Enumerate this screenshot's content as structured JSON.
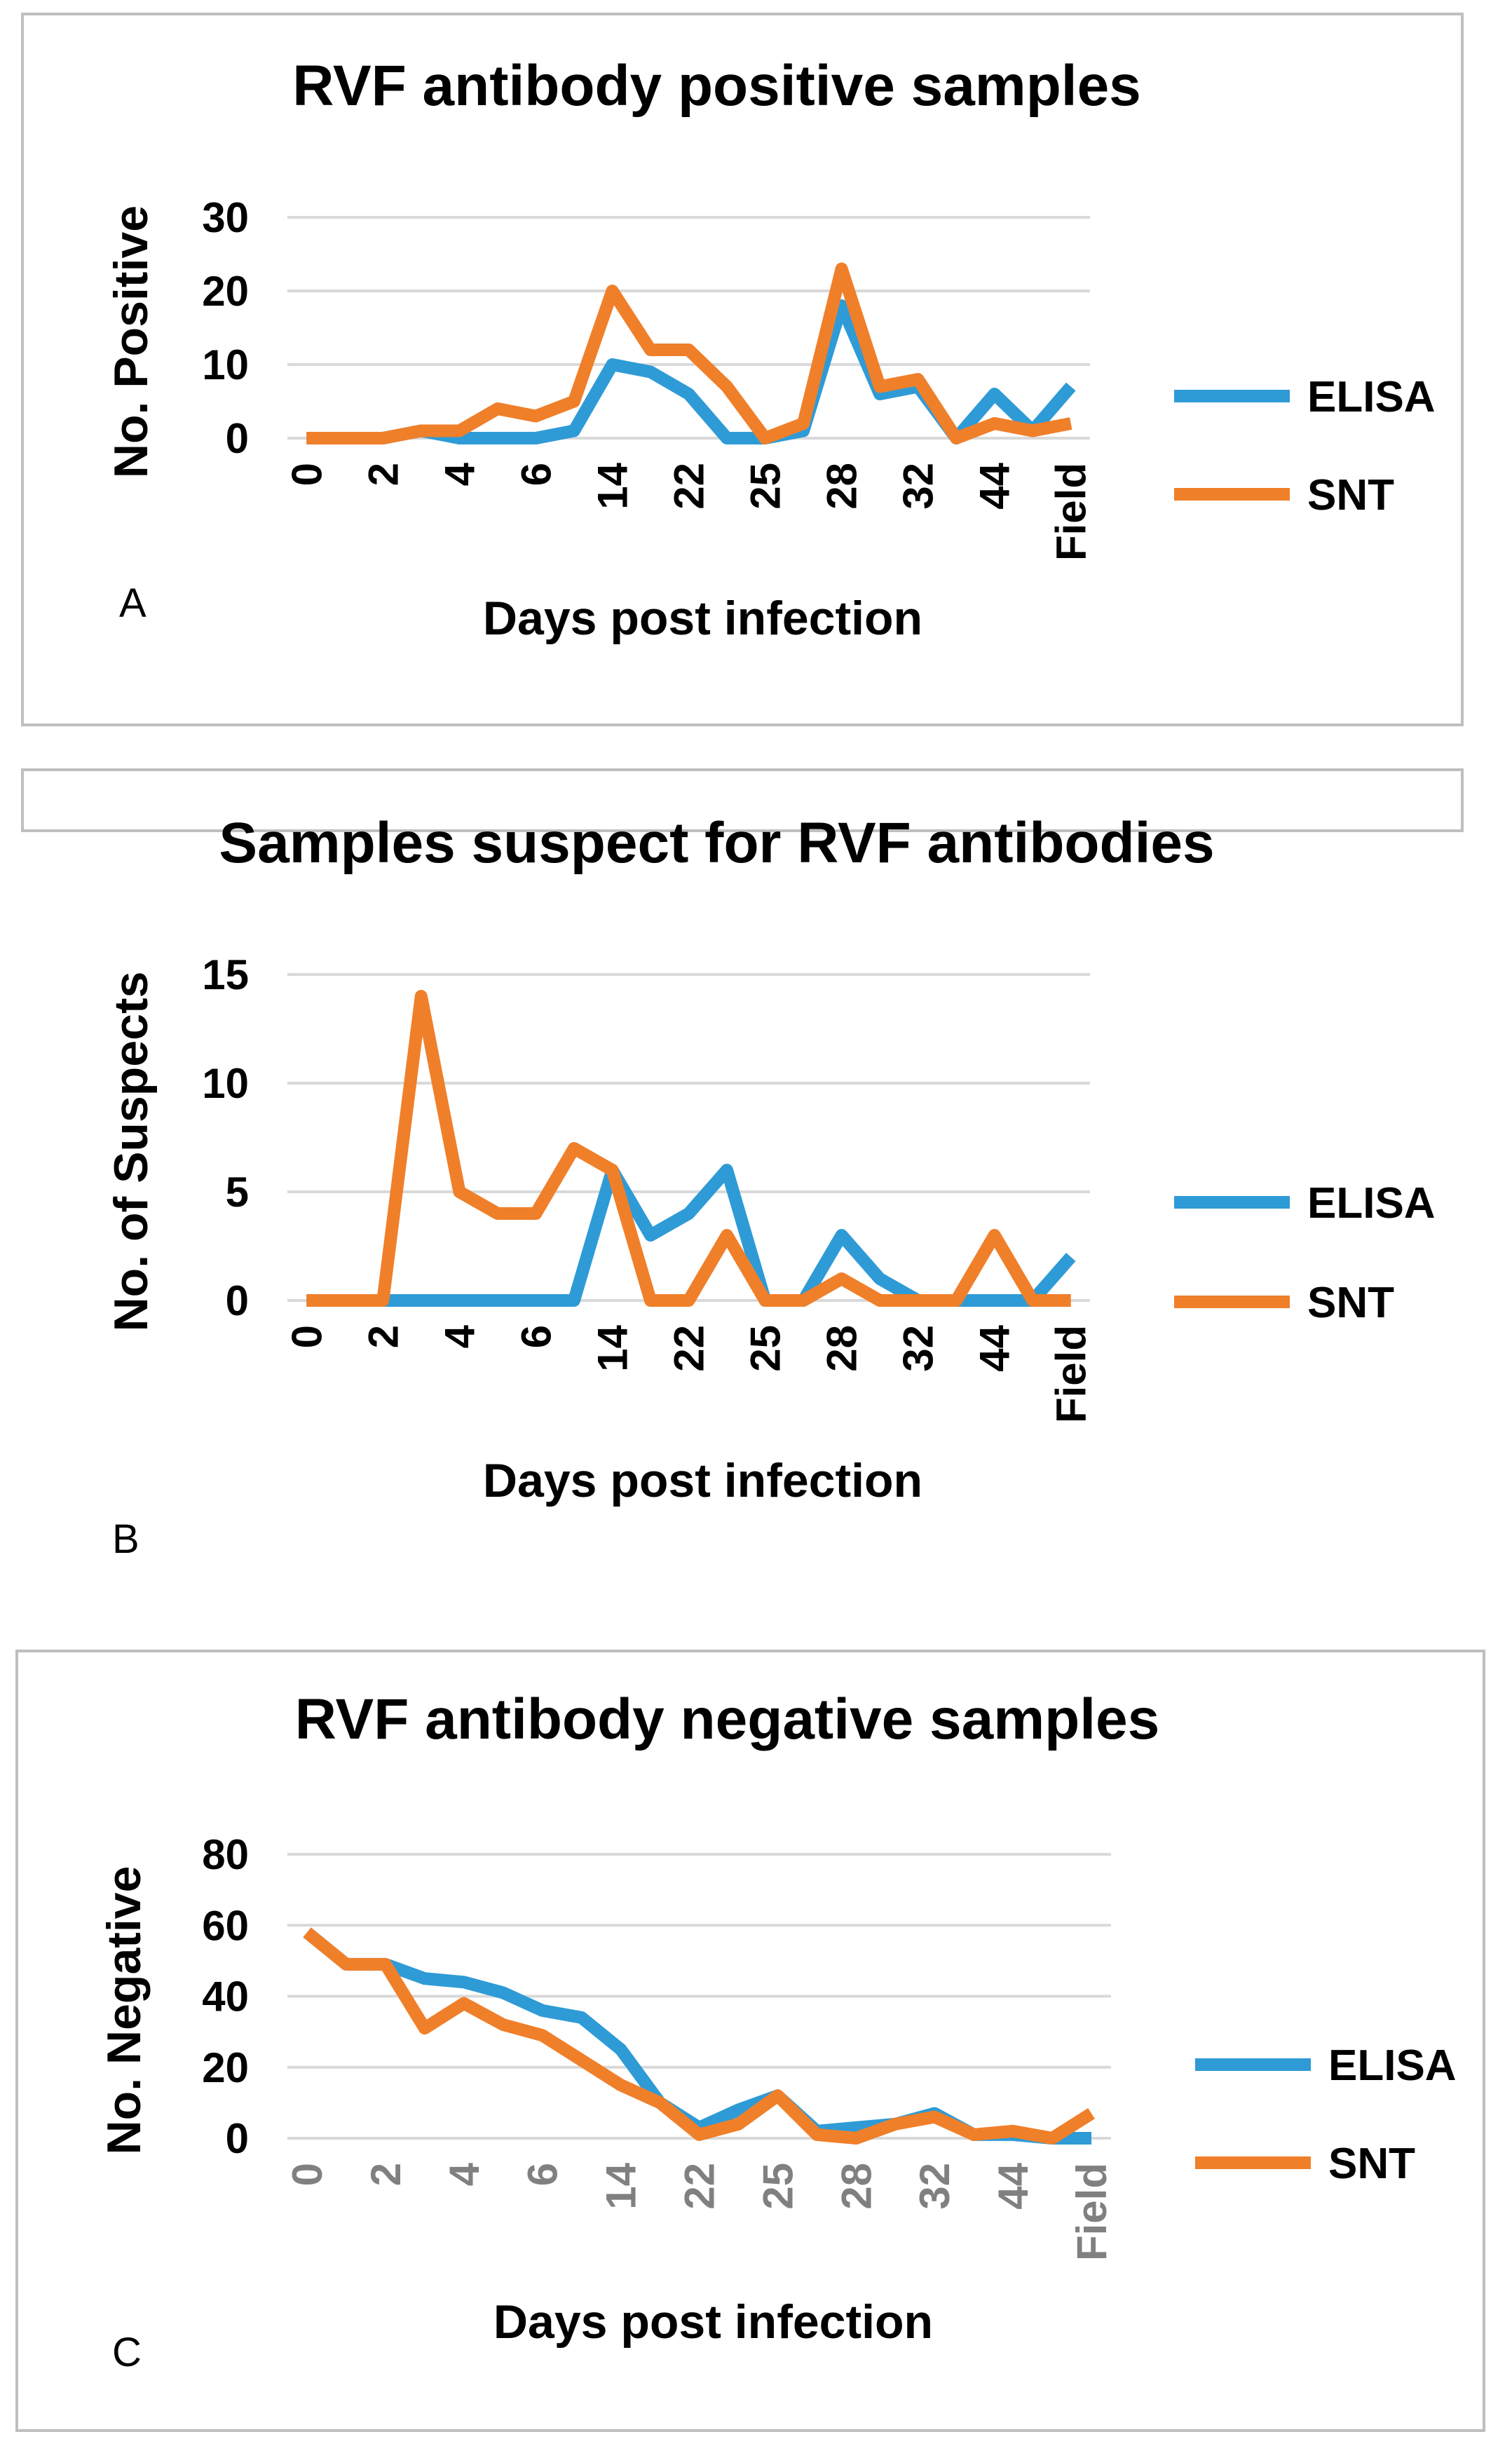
{
  "chart_data": [
    {
      "type": "line",
      "panel_label": "A",
      "title": "RVF antibody positive samples",
      "xlabel": "Days post infection",
      "ylabel": "No. Positive",
      "ylim": [
        0,
        30
      ],
      "yticks": [
        0,
        10,
        20,
        30
      ],
      "grid": true,
      "legend_position": "right",
      "tick_color": "#000000",
      "categories": [
        "0",
        "1",
        "2",
        "3",
        "4",
        "5",
        "6",
        "7",
        "14",
        "18",
        "22",
        "24",
        "25",
        "27",
        "28",
        "30",
        "32",
        "34",
        "44",
        "45",
        "Field"
      ],
      "x_tick_labels": [
        "0",
        "",
        "2",
        "",
        "4",
        "",
        "6",
        "",
        "14",
        "",
        "22",
        "",
        "25",
        "",
        "28",
        "",
        "32",
        "",
        "44",
        "",
        "Field"
      ],
      "series": [
        {
          "name": "ELISA",
          "color": "#2e9bd6",
          "values": [
            0,
            0,
            0,
            1,
            0,
            0,
            0,
            1,
            10,
            9,
            6,
            0,
            0,
            1,
            18,
            6,
            7,
            0,
            6,
            1,
            7
          ]
        },
        {
          "name": "SNT",
          "color": "#f07f2a",
          "values": [
            0,
            0,
            0,
            1,
            1,
            4,
            3,
            5,
            20,
            12,
            12,
            7,
            0,
            2,
            23,
            7,
            8,
            0,
            2,
            1,
            2
          ]
        }
      ]
    },
    {
      "type": "line",
      "panel_label": "B",
      "title": "Samples suspect for RVF antibodies",
      "xlabel": "Days post infection",
      "ylabel": "No. of Suspects",
      "ylim": [
        0,
        15
      ],
      "yticks": [
        0,
        5,
        10,
        15
      ],
      "grid": true,
      "legend_position": "right",
      "tick_color": "#000000",
      "categories": [
        "0",
        "1",
        "2",
        "3",
        "4",
        "5",
        "6",
        "7",
        "14",
        "18",
        "22",
        "24",
        "25",
        "27",
        "28",
        "30",
        "32",
        "34",
        "44",
        "45",
        "Field"
      ],
      "x_tick_labels": [
        "0",
        "",
        "2",
        "",
        "4",
        "",
        "6",
        "",
        "14",
        "",
        "22",
        "",
        "25",
        "",
        "28",
        "",
        "32",
        "",
        "44",
        "",
        "Field"
      ],
      "series": [
        {
          "name": "ELISA",
          "color": "#2e9bd6",
          "values": [
            0,
            0,
            0,
            0,
            0,
            0,
            0,
            0,
            6,
            3,
            4,
            6,
            0,
            0,
            3,
            1,
            0,
            0,
            0,
            0,
            2
          ]
        },
        {
          "name": "SNT",
          "color": "#f07f2a",
          "values": [
            0,
            0,
            0,
            14,
            5,
            4,
            4,
            7,
            6,
            0,
            0,
            3,
            0,
            0,
            1,
            0,
            0,
            0,
            3,
            0,
            0
          ]
        }
      ]
    },
    {
      "type": "line",
      "panel_label": "C",
      "title": "RVF antibody negative samples",
      "xlabel": "Days post infection",
      "ylabel": "No. Negative",
      "ylim": [
        0,
        80
      ],
      "yticks": [
        0,
        20,
        40,
        60,
        80
      ],
      "grid": true,
      "legend_position": "right",
      "tick_color": "#808080",
      "categories": [
        "0",
        "1",
        "2",
        "3",
        "4",
        "5",
        "6",
        "7",
        "14",
        "18",
        "22",
        "24",
        "25",
        "27",
        "28",
        "30",
        "32",
        "34",
        "44",
        "45",
        "Field"
      ],
      "x_tick_labels": [
        "0",
        "",
        "2",
        "",
        "4",
        "",
        "6",
        "",
        "14",
        "",
        "22",
        "",
        "25",
        "",
        "28",
        "",
        "32",
        "",
        "44",
        "",
        "Field"
      ],
      "series": [
        {
          "name": "ELISA",
          "color": "#2e9bd6",
          "values": [
            58,
            49,
            49,
            45,
            44,
            41,
            36,
            34,
            25,
            10,
            3,
            8,
            12,
            2,
            3,
            4,
            7,
            1,
            1,
            0,
            0
          ]
        },
        {
          "name": "SNT",
          "color": "#f07f2a",
          "values": [
            58,
            49,
            49,
            31,
            38,
            32,
            29,
            22,
            15,
            10,
            1,
            4,
            12,
            1,
            0,
            4,
            6,
            1,
            2,
            0,
            7
          ]
        }
      ]
    }
  ]
}
